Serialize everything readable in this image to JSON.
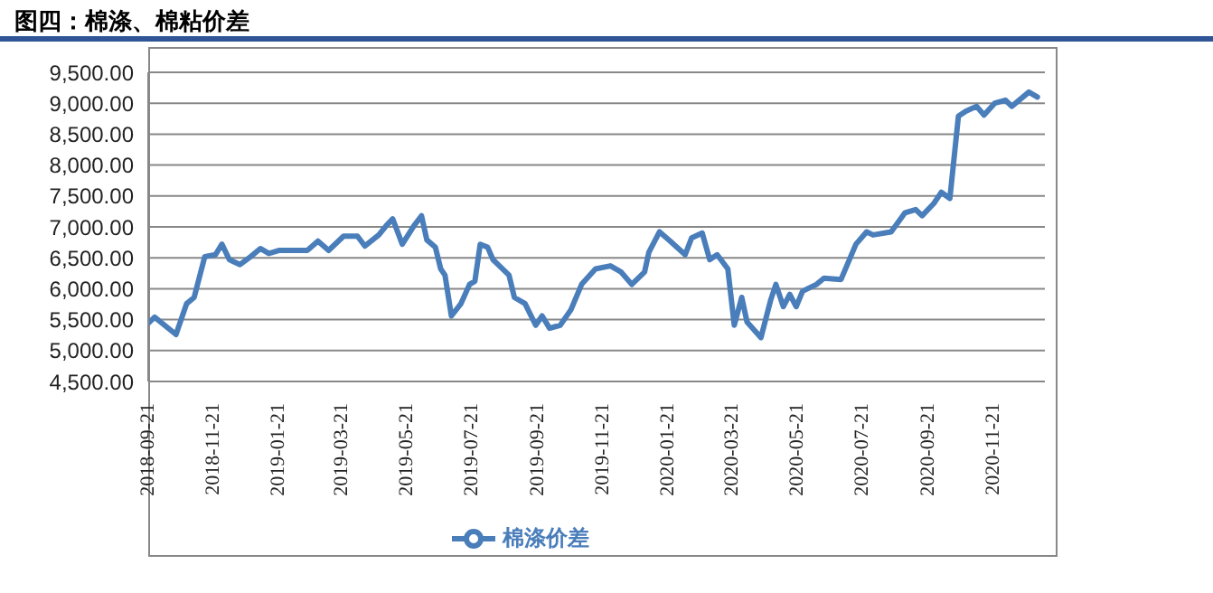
{
  "chart_data": {
    "type": "line",
    "title": "图四：棉涤、棉粘价差",
    "x": [
      "2018-09-21",
      "2018-09-27",
      "2018-10-17",
      "2018-10-27",
      "2018-11-03",
      "2018-11-13",
      "2018-11-23",
      "2018-11-29",
      "2018-12-06",
      "2018-12-16",
      "2018-12-26",
      "2019-01-04",
      "2019-01-12",
      "2019-01-22",
      "2019-02-17",
      "2019-02-27",
      "2019-03-09",
      "2019-03-23",
      "2019-04-05",
      "2019-04-12",
      "2019-04-25",
      "2019-05-02",
      "2019-05-08",
      "2019-05-17",
      "2019-05-28",
      "2019-06-04",
      "2019-06-09",
      "2019-06-17",
      "2019-06-22",
      "2019-06-26",
      "2019-07-02",
      "2019-07-11",
      "2019-07-19",
      "2019-07-24",
      "2019-07-29",
      "2019-08-05",
      "2019-08-10",
      "2019-08-16",
      "2019-08-25",
      "2019-08-30",
      "2019-09-09",
      "2019-09-19",
      "2019-09-25",
      "2019-10-02",
      "2019-10-12",
      "2019-10-22",
      "2019-11-01",
      "2019-11-14",
      "2019-11-28",
      "2019-12-08",
      "2019-12-18",
      "2019-12-30",
      "2020-01-03",
      "2020-01-13",
      "2020-01-23",
      "2020-02-06",
      "2020-02-12",
      "2020-02-22",
      "2020-02-29",
      "2020-03-07",
      "2020-03-17",
      "2020-03-23",
      "2020-03-30",
      "2020-04-04",
      "2020-04-17",
      "2020-04-26",
      "2020-05-01",
      "2020-05-08",
      "2020-05-14",
      "2020-05-20",
      "2020-05-26",
      "2020-06-08",
      "2020-06-15",
      "2020-07-01",
      "2020-07-15",
      "2020-07-25",
      "2020-07-31",
      "2020-08-17",
      "2020-08-30",
      "2020-09-09",
      "2020-09-15",
      "2020-09-26",
      "2020-10-03",
      "2020-10-11",
      "2020-10-19",
      "2020-10-26",
      "2020-11-05",
      "2020-11-12",
      "2020-11-22",
      "2020-12-02",
      "2020-12-08",
      "2020-12-24",
      "2021-01-01"
    ],
    "series": [
      {
        "name": "棉涤价差",
        "color": "#4a7ebb",
        "values": [
          5440,
          5540,
          5260,
          5760,
          5860,
          6520,
          6550,
          6720,
          6470,
          6390,
          6520,
          6650,
          6570,
          6620,
          6620,
          6770,
          6620,
          6850,
          6850,
          6690,
          6870,
          7020,
          7130,
          6720,
          7020,
          7180,
          6790,
          6670,
          6320,
          6220,
          5560,
          5760,
          6070,
          6120,
          6720,
          6670,
          6470,
          6370,
          6220,
          5860,
          5760,
          5410,
          5560,
          5360,
          5410,
          5660,
          6070,
          6320,
          6370,
          6270,
          6070,
          6270,
          6590,
          6920,
          6770,
          6550,
          6820,
          6900,
          6470,
          6550,
          6320,
          5410,
          5860,
          5460,
          5210,
          5810,
          6070,
          5710,
          5910,
          5710,
          5960,
          6070,
          6170,
          6150,
          6720,
          6920,
          6870,
          6920,
          7230,
          7280,
          7180,
          7380,
          7560,
          7460,
          8790,
          8870,
          8950,
          8810,
          9000,
          9050,
          8950,
          9180,
          9100
        ]
      }
    ],
    "xlim": [
      "2018-09-21",
      "2021-01-08"
    ],
    "xticks": [
      "2018-09-21",
      "2018-11-21",
      "2019-01-21",
      "2019-03-21",
      "2019-05-21",
      "2019-07-21",
      "2019-09-21",
      "2019-11-21",
      "2020-01-21",
      "2020-03-21",
      "2020-05-21",
      "2020-07-21",
      "2020-09-21",
      "2020-11-21"
    ],
    "ylim": [
      4500,
      9500
    ],
    "yticks": [
      {
        "value": 4500,
        "label": "4,500.00"
      },
      {
        "value": 5000,
        "label": "5,000.00"
      },
      {
        "value": 5500,
        "label": "5,500.00"
      },
      {
        "value": 6000,
        "label": "6,000.00"
      },
      {
        "value": 6500,
        "label": "6,500.00"
      },
      {
        "value": 7000,
        "label": "7,000.00"
      },
      {
        "value": 7500,
        "label": "7,500.00"
      },
      {
        "value": 8000,
        "label": "8,000.00"
      },
      {
        "value": 8500,
        "label": "8,500.00"
      },
      {
        "value": 9000,
        "label": "9,000.00"
      },
      {
        "value": 9500,
        "label": "9,500.00"
      }
    ],
    "grid": "y",
    "legend": "bottom",
    "marker": "none",
    "line_style": "solid"
  }
}
